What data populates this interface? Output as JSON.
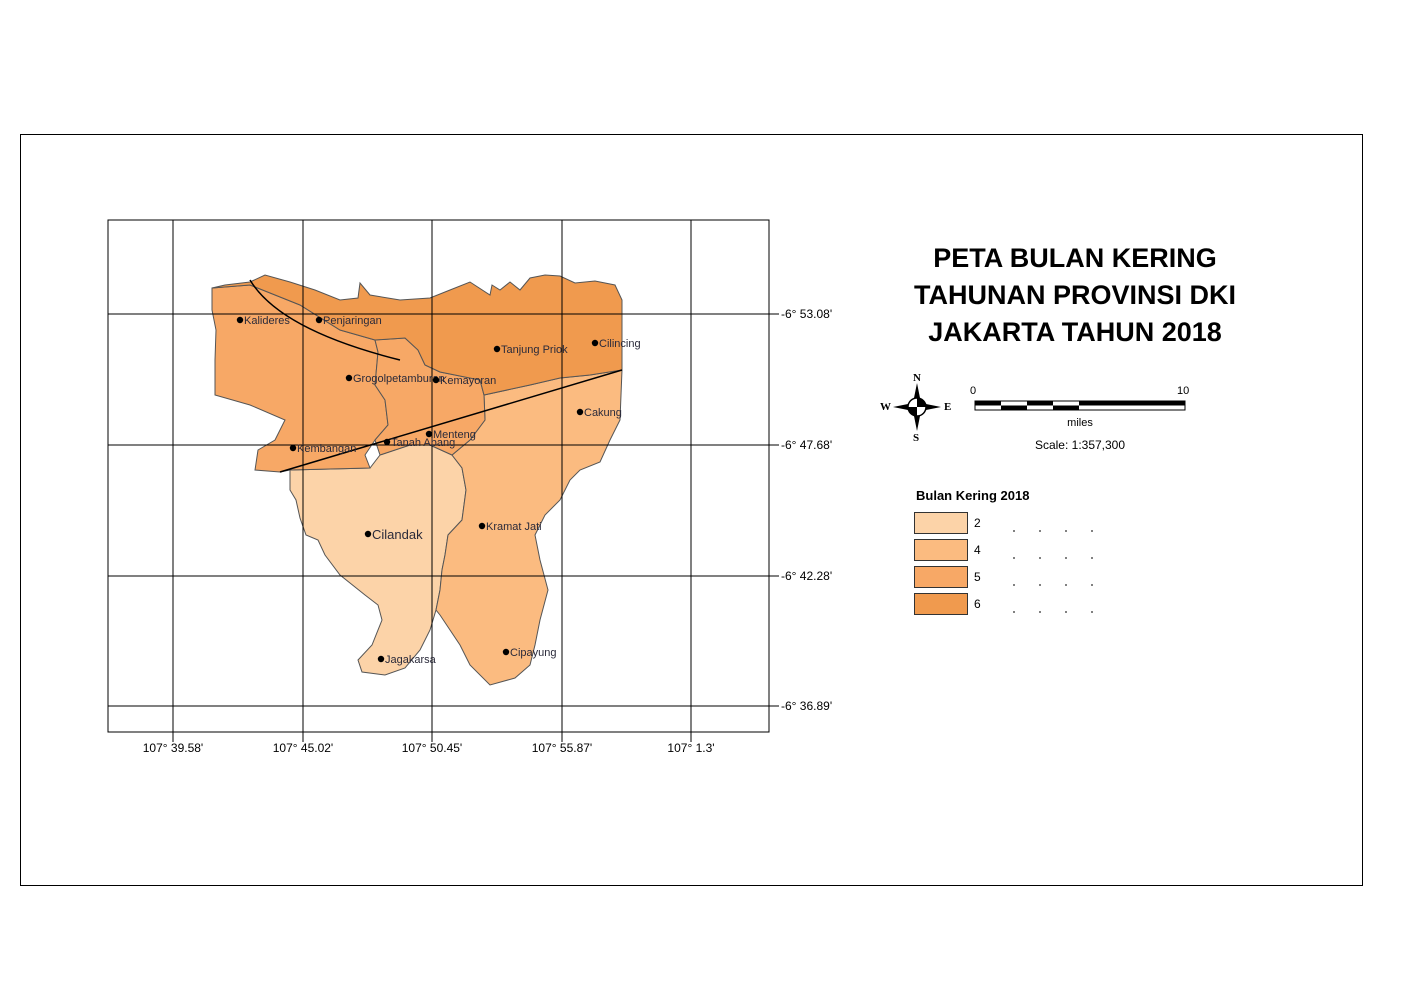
{
  "title": {
    "line1": "PETA BULAN KERING",
    "line2": "TAHUNAN PROVINSI DKI",
    "line3": "JAKARTA TAHUN 2018"
  },
  "grid": {
    "lon_labels": [
      "107° 39.58'",
      "107° 45.02'",
      "107° 50.45'",
      "107° 55.87'",
      "107° 1.3'"
    ],
    "lat_labels": [
      "-6° 53.08'",
      "-6° 47.68'",
      "-6° 42.28'",
      "-6° 36.89'"
    ]
  },
  "places": [
    {
      "name": "Kalideres"
    },
    {
      "name": "Penjaringan"
    },
    {
      "name": "Tanjung Priok"
    },
    {
      "name": "Cilincing"
    },
    {
      "name": "Grogolpetamburan"
    },
    {
      "name": "Kemayoran"
    },
    {
      "name": "Cakung"
    },
    {
      "name": "Menteng"
    },
    {
      "name": "Kembangan"
    },
    {
      "name": "Tanah Abang"
    },
    {
      "name": "Cilandak"
    },
    {
      "name": "Kramat Jati"
    },
    {
      "name": "Jagakarsa"
    },
    {
      "name": "Cipayung"
    }
  ],
  "compass": {
    "n": "N",
    "s": "S",
    "e": "E",
    "w": "W"
  },
  "scale_bar": {
    "start": "0",
    "end": "10",
    "unit": "miles",
    "scale": "Scale: 1:357,300"
  },
  "legend": {
    "title": "Bulan Kering 2018",
    "items": [
      {
        "label": "2",
        "color": "#fcd3a8"
      },
      {
        "label": "4",
        "color": "#fbbb80"
      },
      {
        "label": "5",
        "color": "#f7a866"
      },
      {
        "label": "6",
        "color": "#f09a4e"
      }
    ]
  },
  "colors": {
    "class2": "#fcd3a8",
    "class4": "#fbbb80",
    "class5": "#f7a866",
    "class6": "#f09a4e"
  }
}
